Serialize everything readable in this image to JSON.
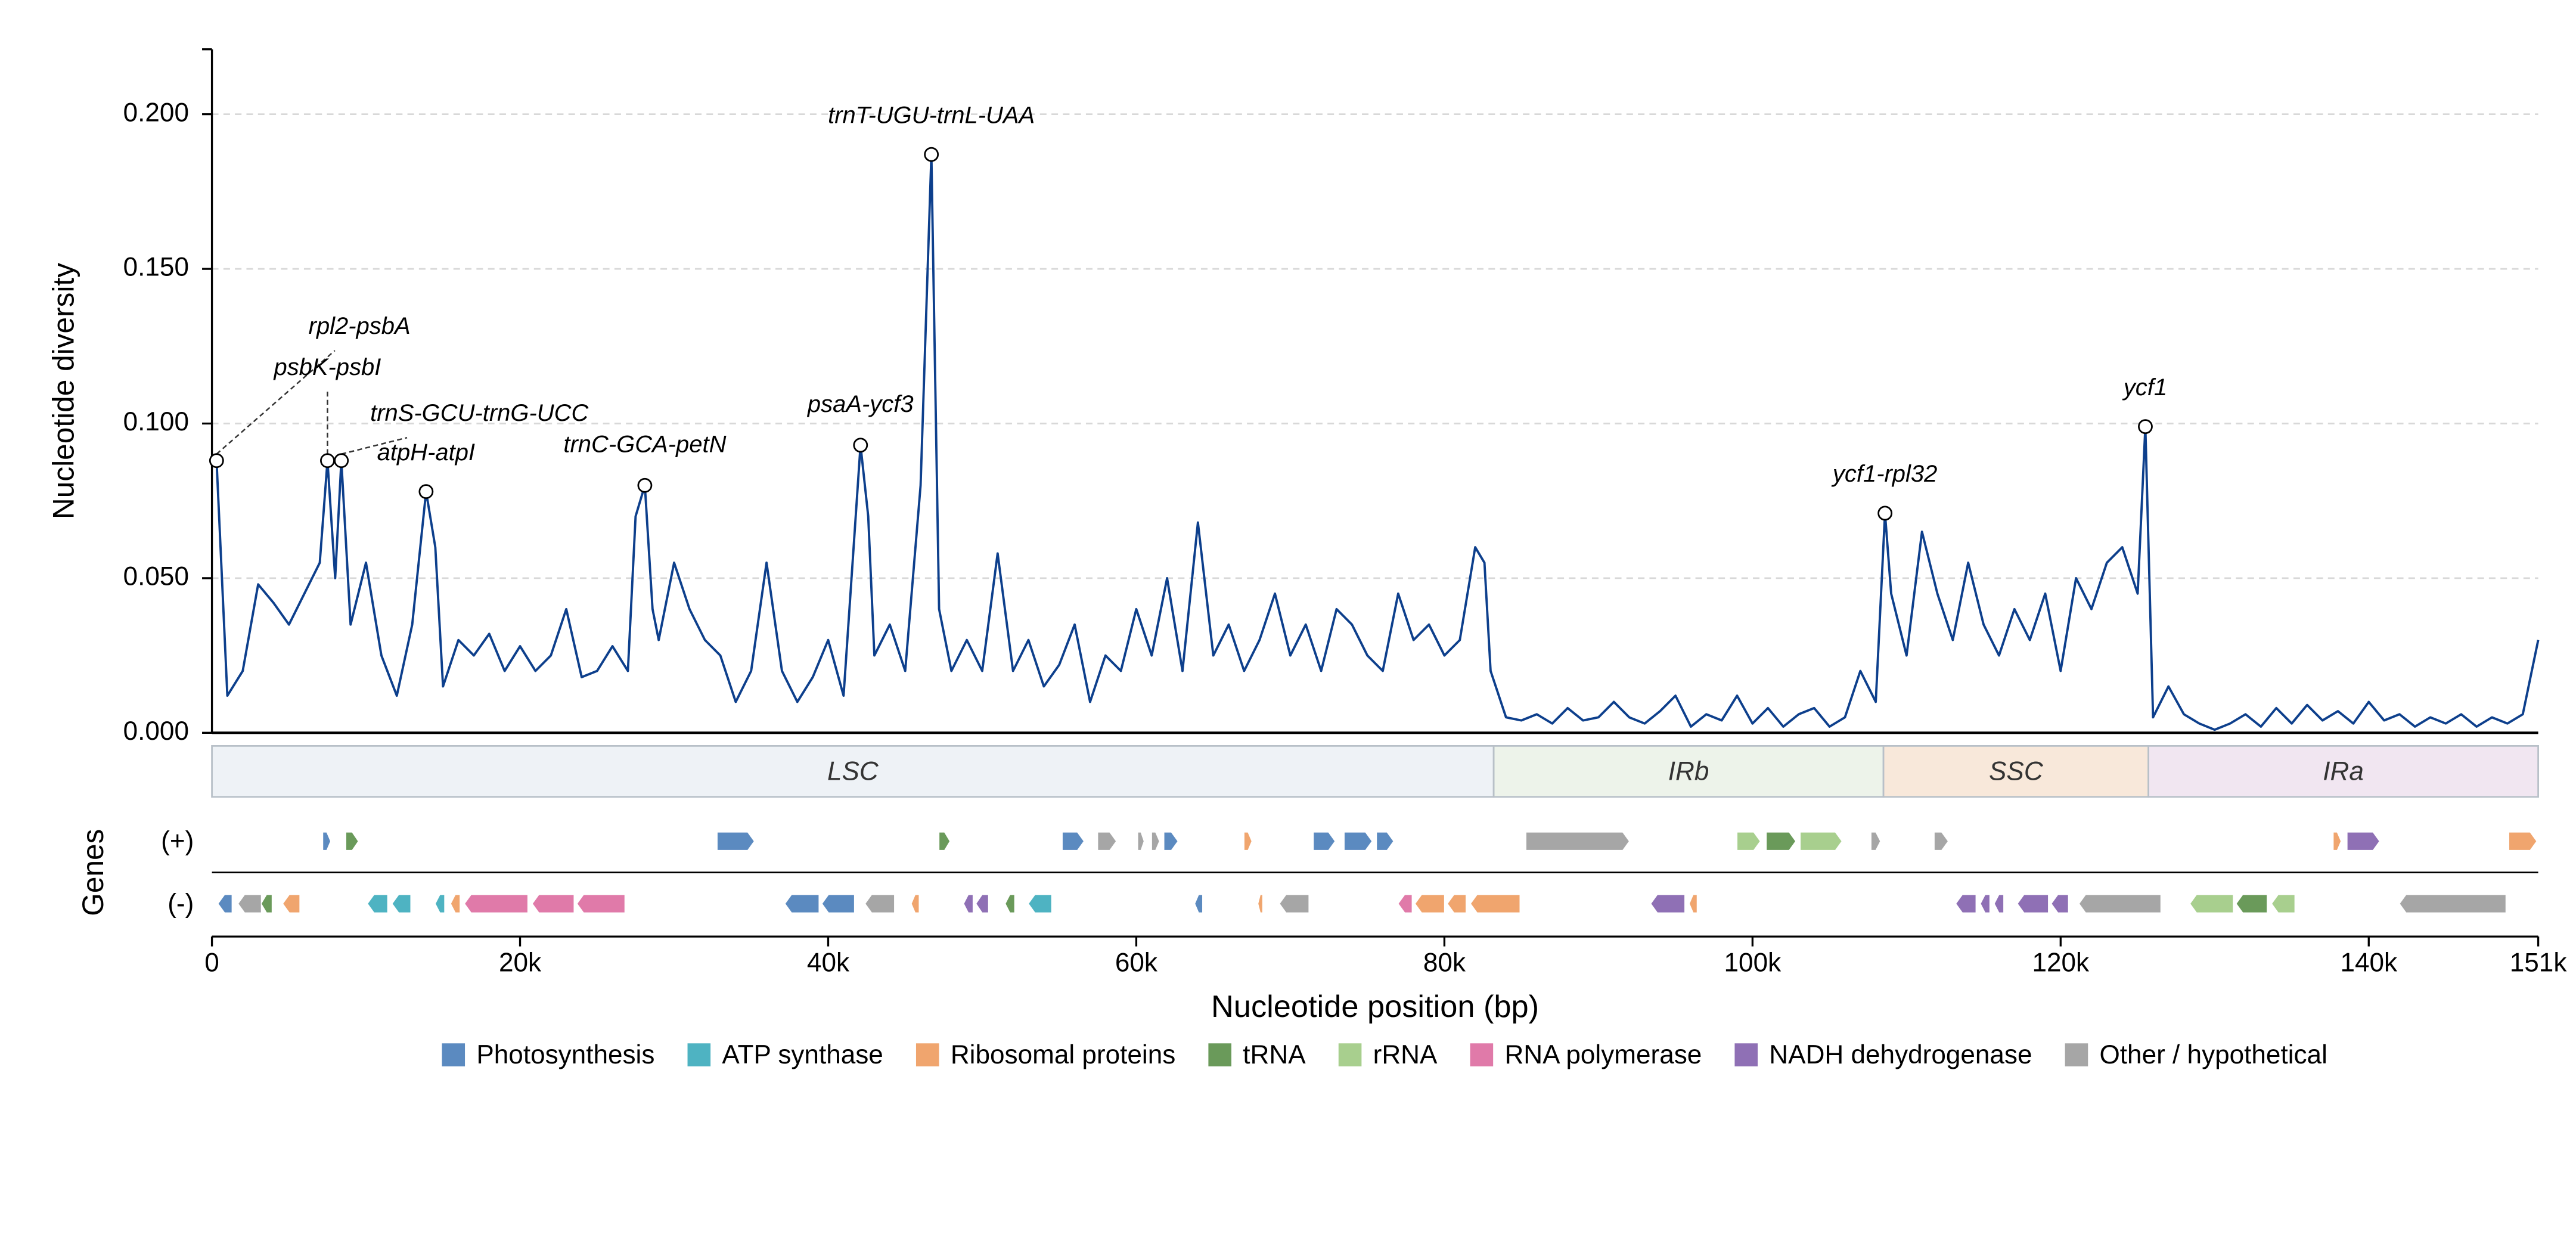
{
  "chart_data": {
    "type": "line",
    "ylabel": "Nucleotide diversity",
    "xlabel": "Nucleotide position (bp)",
    "color": "#0d3f8c",
    "grid": true,
    "xlim": [
      0,
      151000
    ],
    "ylim": [
      0,
      0.221
    ],
    "yticks": [
      {
        "value": 0,
        "label": "0.000"
      },
      {
        "value": 0.05,
        "label": "0.050"
      },
      {
        "value": 0.1,
        "label": "0.100"
      },
      {
        "value": 0.15,
        "label": "0.150"
      },
      {
        "value": 0.2,
        "label": "0.200"
      }
    ],
    "xticks": [
      0,
      {
        "value": 20000,
        "label": "20k"
      },
      {
        "value": 40000,
        "label": "40k"
      },
      {
        "value": 60000,
        "label": "60k"
      },
      {
        "value": 80000,
        "label": "80k"
      },
      {
        "value": 100000,
        "label": "100k"
      },
      {
        "value": 120000,
        "label": "120k"
      },
      {
        "value": 140000,
        "label": "140k"
      },
      {
        "value": 151000,
        "label": "151k"
      }
    ],
    "x": [
      300,
      1000,
      2000,
      3000,
      4000,
      5000,
      6000,
      7000,
      7500,
      8000,
      8400,
      9000,
      10000,
      11000,
      12000,
      13000,
      13900,
      14500,
      15000,
      16000,
      17000,
      18000,
      19000,
      20000,
      21000,
      22000,
      23000,
      24000,
      25000,
      26000,
      27000,
      27500,
      28100,
      28600,
      29000,
      30000,
      31000,
      32000,
      33000,
      34000,
      35000,
      36000,
      37000,
      38000,
      39000,
      40000,
      41000,
      42100,
      42600,
      43000,
      44000,
      45000,
      46000,
      46700,
      47200,
      48000,
      49000,
      50000,
      51000,
      52000,
      53000,
      54000,
      55000,
      56000,
      57000,
      58000,
      59000,
      60000,
      61000,
      62000,
      63000,
      64000,
      65000,
      66000,
      67000,
      68000,
      69000,
      70000,
      71000,
      72000,
      73000,
      74000,
      75000,
      76000,
      77000,
      78000,
      79000,
      80000,
      81000,
      82000,
      82600,
      83000,
      84000,
      85000,
      86000,
      87000,
      88000,
      89000,
      90000,
      91000,
      92000,
      93000,
      94000,
      95000,
      96000,
      97000,
      98000,
      99000,
      100000,
      101000,
      102000,
      103000,
      104000,
      105000,
      106000,
      107000,
      108000,
      108600,
      109000,
      110000,
      111000,
      112000,
      113000,
      114000,
      115000,
      116000,
      117000,
      118000,
      119000,
      120000,
      121000,
      122000,
      123000,
      124000,
      125000,
      125500,
      126000,
      127000,
      128000,
      129000,
      130000,
      131000,
      132000,
      133000,
      134000,
      135000,
      136000,
      137000,
      138000,
      139000,
      140000,
      141000,
      142000,
      143000,
      144000,
      145000,
      146000,
      147000,
      148000,
      149000,
      150000,
      151000
    ],
    "values": [
      0.088,
      0.012,
      0.02,
      0.048,
      0.042,
      0.035,
      0.045,
      0.055,
      0.088,
      0.05,
      0.088,
      0.035,
      0.055,
      0.025,
      0.012,
      0.035,
      0.078,
      0.06,
      0.015,
      0.03,
      0.025,
      0.032,
      0.02,
      0.028,
      0.02,
      0.025,
      0.04,
      0.018,
      0.02,
      0.028,
      0.02,
      0.07,
      0.08,
      0.04,
      0.03,
      0.055,
      0.04,
      0.03,
      0.025,
      0.01,
      0.02,
      0.055,
      0.02,
      0.01,
      0.018,
      0.03,
      0.012,
      0.093,
      0.07,
      0.025,
      0.035,
      0.02,
      0.08,
      0.187,
      0.04,
      0.02,
      0.03,
      0.02,
      0.058,
      0.02,
      0.03,
      0.015,
      0.022,
      0.035,
      0.01,
      0.025,
      0.02,
      0.04,
      0.025,
      0.05,
      0.02,
      0.068,
      0.025,
      0.035,
      0.02,
      0.03,
      0.045,
      0.025,
      0.035,
      0.02,
      0.04,
      0.035,
      0.025,
      0.02,
      0.045,
      0.03,
      0.035,
      0.025,
      0.03,
      0.06,
      0.055,
      0.02,
      0.005,
      0.004,
      0.006,
      0.003,
      0.008,
      0.004,
      0.005,
      0.01,
      0.005,
      0.003,
      0.007,
      0.012,
      0.002,
      0.006,
      0.004,
      0.012,
      0.003,
      0.008,
      0.002,
      0.006,
      0.008,
      0.002,
      0.005,
      0.02,
      0.01,
      0.071,
      0.045,
      0.025,
      0.065,
      0.045,
      0.03,
      0.055,
      0.035,
      0.025,
      0.04,
      0.03,
      0.045,
      0.02,
      0.05,
      0.04,
      0.055,
      0.06,
      0.045,
      0.099,
      0.005,
      0.015,
      0.006,
      0.003,
      0.001,
      0.003,
      0.006,
      0.002,
      0.008,
      0.003,
      0.009,
      0.004,
      0.007,
      0.003,
      0.01,
      0.004,
      0.006,
      0.002,
      0.005,
      0.003,
      0.006,
      0.002,
      0.005,
      0.003,
      0.006,
      0.03
    ],
    "annotations": [
      {
        "label": "rpl2-psbA",
        "x": 300,
        "y": 0.088
      },
      {
        "label": "psbK-psbI",
        "x": 7500,
        "y": 0.088
      },
      {
        "label": "trnS-GCU-trnG-UCC",
        "x": 8400,
        "y": 0.088
      },
      {
        "label": "atpH-atpI",
        "x": 13900,
        "y": 0.078
      },
      {
        "label": "trnC-GCA-petN",
        "x": 28100,
        "y": 0.08
      },
      {
        "label": "psaA-ycf3",
        "x": 42100,
        "y": 0.093
      },
      {
        "label": "trnT-UGU-trnL-UAA",
        "x": 46700,
        "y": 0.187
      },
      {
        "label": "ycf1-rpl32",
        "x": 108600,
        "y": 0.071
      },
      {
        "label": "ycf1",
        "x": 125500,
        "y": 0.099
      }
    ],
    "regions": [
      {
        "name": "LSC",
        "start": 0,
        "end": 83200,
        "color": "#eef2f6"
      },
      {
        "name": "IRb",
        "start": 83200,
        "end": 108500,
        "color": "#edf3ea"
      },
      {
        "name": "SSC",
        "start": 108500,
        "end": 125700,
        "color": "#f8e8da"
      },
      {
        "name": "IRa",
        "start": 125700,
        "end": 151000,
        "color": "#f1e6f1"
      }
    ],
    "genes_label": "Genes",
    "strand_labels": [
      "(+)",
      "(-)"
    ],
    "gene_categories": [
      {
        "name": "Photosynthesis",
        "color": "#5b8ac0"
      },
      {
        "name": "ATP synthase",
        "color": "#4eb3c2"
      },
      {
        "name": "Ribosomal proteins",
        "color": "#f0a56e"
      },
      {
        "name": "tRNA",
        "color": "#6a9a5a"
      },
      {
        "name": "rRNA",
        "color": "#a8cf8e"
      },
      {
        "name": "RNA polymerase",
        "color": "#e07aa9"
      },
      {
        "name": "NADH dehydrogenase",
        "color": "#8f70b5"
      },
      {
        "name": "Other / hypothetical",
        "color": "#a6a6a6"
      }
    ],
    "genes": [
      {
        "strand": "(+)",
        "category": "Photosynthesis",
        "start": 7200,
        "end": 7700
      },
      {
        "strand": "(+)",
        "category": "tRNA",
        "start": 8700,
        "end": 9500
      },
      {
        "strand": "(+)",
        "category": "Photosynthesis",
        "start": 32800,
        "end": 35200
      },
      {
        "strand": "(+)",
        "category": "tRNA",
        "start": 47200,
        "end": 47900
      },
      {
        "strand": "(+)",
        "category": "Photosynthesis",
        "start": 55200,
        "end": 56600
      },
      {
        "strand": "(+)",
        "category": "Other / hypothetical",
        "start": 57500,
        "end": 58700
      },
      {
        "strand": "(+)",
        "category": "Other / hypothetical",
        "start": 60100,
        "end": 60500
      },
      {
        "strand": "(+)",
        "category": "Other / hypothetical",
        "start": 61000,
        "end": 61500
      },
      {
        "strand": "(+)",
        "category": "Photosynthesis",
        "start": 61800,
        "end": 62700
      },
      {
        "strand": "(+)",
        "category": "Ribosomal proteins",
        "start": 67000,
        "end": 67500
      },
      {
        "strand": "(+)",
        "category": "Photosynthesis",
        "start": 71500,
        "end": 72900
      },
      {
        "strand": "(+)",
        "category": "Photosynthesis",
        "start": 73500,
        "end": 75300
      },
      {
        "strand": "(+)",
        "category": "Photosynthesis",
        "start": 75600,
        "end": 76700
      },
      {
        "strand": "(+)",
        "category": "Other / hypothetical",
        "start": 85300,
        "end": 92000
      },
      {
        "strand": "(+)",
        "category": "rRNA",
        "start": 99000,
        "end": 100500
      },
      {
        "strand": "(+)",
        "category": "tRNA",
        "start": 100900,
        "end": 102800
      },
      {
        "strand": "(+)",
        "category": "rRNA",
        "start": 103100,
        "end": 105800
      },
      {
        "strand": "(+)",
        "category": "Other / hypothetical",
        "start": 107700,
        "end": 108300
      },
      {
        "strand": "(+)",
        "category": "Other / hypothetical",
        "start": 111800,
        "end": 112700
      },
      {
        "strand": "(+)",
        "category": "Ribosomal proteins",
        "start": 137700,
        "end": 138200
      },
      {
        "strand": "(+)",
        "category": "NADH dehydrogenase",
        "start": 138600,
        "end": 140700
      },
      {
        "strand": "(+)",
        "category": "Ribosomal proteins",
        "start": 149100,
        "end": 150900
      },
      {
        "strand": "(-)",
        "category": "Photosynthesis",
        "start": 400,
        "end": 1300
      },
      {
        "strand": "(-)",
        "category": "Other / hypothetical",
        "start": 1700,
        "end": 3200
      },
      {
        "strand": "(-)",
        "category": "tRNA",
        "start": 3200,
        "end": 3900
      },
      {
        "strand": "(-)",
        "category": "Ribosomal proteins",
        "start": 4600,
        "end": 5700
      },
      {
        "strand": "(-)",
        "category": "ATP synthase",
        "start": 10100,
        "end": 11400
      },
      {
        "strand": "(-)",
        "category": "ATP synthase",
        "start": 11700,
        "end": 12900
      },
      {
        "strand": "(-)",
        "category": "ATP synthase",
        "start": 14500,
        "end": 15100
      },
      {
        "strand": "(-)",
        "category": "Ribosomal proteins",
        "start": 15500,
        "end": 16100
      },
      {
        "strand": "(-)",
        "category": "RNA polymerase",
        "start": 16400,
        "end": 20500
      },
      {
        "strand": "(-)",
        "category": "RNA polymerase",
        "start": 20800,
        "end": 23500
      },
      {
        "strand": "(-)",
        "category": "RNA polymerase",
        "start": 23700,
        "end": 26800
      },
      {
        "strand": "(-)",
        "category": "Photosynthesis",
        "start": 37200,
        "end": 39400
      },
      {
        "strand": "(-)",
        "category": "Photosynthesis",
        "start": 39600,
        "end": 41700
      },
      {
        "strand": "(-)",
        "category": "Other / hypothetical",
        "start": 42400,
        "end": 44300
      },
      {
        "strand": "(-)",
        "category": "Ribosomal proteins",
        "start": 45400,
        "end": 45900
      },
      {
        "strand": "(-)",
        "category": "NADH dehydrogenase",
        "start": 48800,
        "end": 49400
      },
      {
        "strand": "(-)",
        "category": "NADH dehydrogenase",
        "start": 49600,
        "end": 50400
      },
      {
        "strand": "(-)",
        "category": "tRNA",
        "start": 51500,
        "end": 52100
      },
      {
        "strand": "(-)",
        "category": "ATP synthase",
        "start": 53000,
        "end": 54500
      },
      {
        "strand": "(-)",
        "category": "Photosynthesis",
        "start": 63800,
        "end": 64300
      },
      {
        "strand": "(-)",
        "category": "Ribosomal proteins",
        "start": 67900,
        "end": 68200
      },
      {
        "strand": "(-)",
        "category": "Other / hypothetical",
        "start": 69300,
        "end": 71200
      },
      {
        "strand": "(-)",
        "category": "RNA polymerase",
        "start": 77000,
        "end": 77900
      },
      {
        "strand": "(-)",
        "category": "Ribosomal proteins",
        "start": 78100,
        "end": 80000
      },
      {
        "strand": "(-)",
        "category": "Ribosomal proteins",
        "start": 80200,
        "end": 81400
      },
      {
        "strand": "(-)",
        "category": "Ribosomal proteins",
        "start": 81700,
        "end": 84900
      },
      {
        "strand": "(-)",
        "category": "NADH dehydrogenase",
        "start": 93400,
        "end": 95600
      },
      {
        "strand": "(-)",
        "category": "Ribosomal proteins",
        "start": 95900,
        "end": 96400
      },
      {
        "strand": "(-)",
        "category": "NADH dehydrogenase",
        "start": 113200,
        "end": 114500
      },
      {
        "strand": "(-)",
        "category": "NADH dehydrogenase",
        "start": 114800,
        "end": 115400
      },
      {
        "strand": "(-)",
        "category": "NADH dehydrogenase",
        "start": 115700,
        "end": 116300
      },
      {
        "strand": "(-)",
        "category": "NADH dehydrogenase",
        "start": 117200,
        "end": 119200
      },
      {
        "strand": "(-)",
        "category": "NADH dehydrogenase",
        "start": 119400,
        "end": 120500
      },
      {
        "strand": "(-)",
        "category": "Other / hypothetical",
        "start": 121200,
        "end": 126500
      },
      {
        "strand": "(-)",
        "category": "rRNA",
        "start": 128400,
        "end": 131200
      },
      {
        "strand": "(-)",
        "category": "tRNA",
        "start": 131400,
        "end": 133400
      },
      {
        "strand": "(-)",
        "category": "rRNA",
        "start": 133700,
        "end": 135200
      },
      {
        "strand": "(-)",
        "category": "Other / hypothetical",
        "start": 142000,
        "end": 148900
      }
    ]
  }
}
